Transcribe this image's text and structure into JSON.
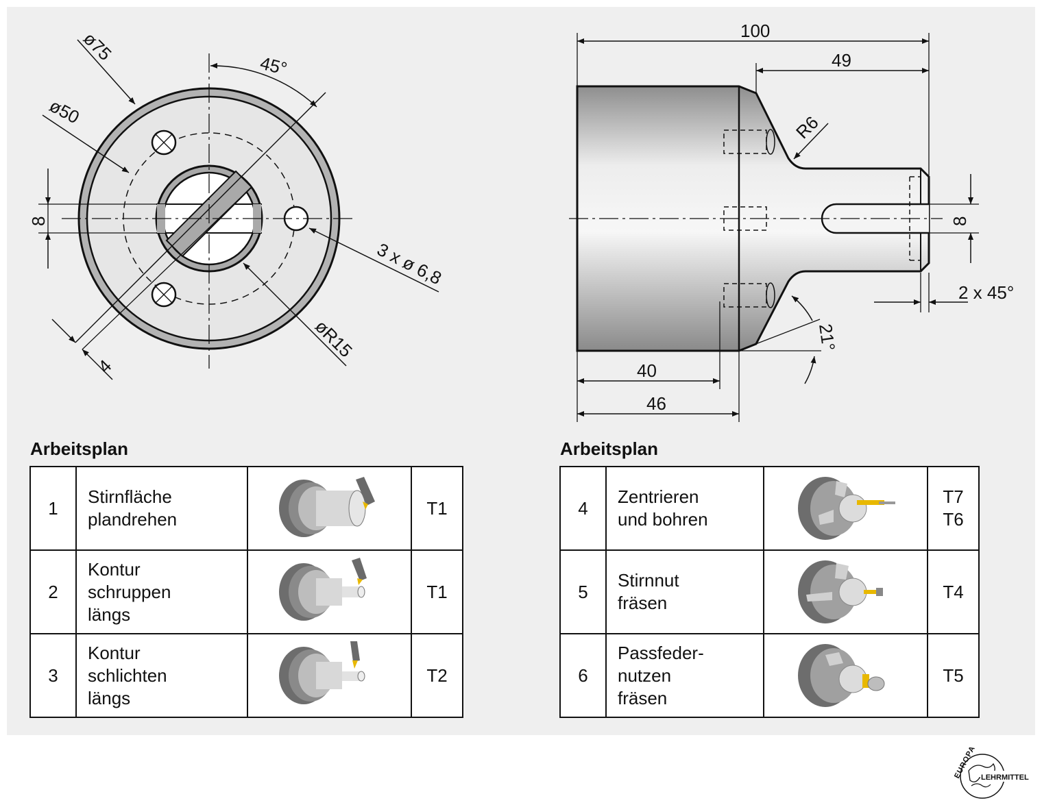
{
  "front_view": {
    "dims": {
      "d75": "ø75",
      "d50": "ø50",
      "angle45": "45°",
      "width8": "8",
      "width4": "4",
      "holes": "3 x ø 6,8",
      "radius15": "øR15"
    }
  },
  "side_view": {
    "dims": {
      "len100": "100",
      "len49": "49",
      "r6": "R6",
      "slot8": "8",
      "chamfer": "2 x 45°",
      "angle21": "21°",
      "len40": "40",
      "len46": "46"
    }
  },
  "plan_left": {
    "title": "Arbeitsplan",
    "rows": [
      {
        "num": "1",
        "step_l1": "Stirnfläche",
        "step_l2": "plandrehen",
        "step_l3": "",
        "tool_l1": "T1",
        "tool_l2": ""
      },
      {
        "num": "2",
        "step_l1": "Kontur",
        "step_l2": "schruppen",
        "step_l3": "längs",
        "tool_l1": "T1",
        "tool_l2": ""
      },
      {
        "num": "3",
        "step_l1": "Kontur",
        "step_l2": "schlichten",
        "step_l3": "längs",
        "tool_l1": "T2",
        "tool_l2": ""
      }
    ]
  },
  "plan_right": {
    "title": "Arbeitsplan",
    "rows": [
      {
        "num": "4",
        "step_l1": "Zentrieren",
        "step_l2": "und bohren",
        "step_l3": "",
        "tool_l1": "T7",
        "tool_l2": "T6"
      },
      {
        "num": "5",
        "step_l1": "Stirnnut",
        "step_l2": "fräsen",
        "step_l3": "",
        "tool_l1": "T4",
        "tool_l2": ""
      },
      {
        "num": "6",
        "step_l1": "Passfeder-",
        "step_l2": "nutzen",
        "step_l3": "fräsen",
        "tool_l1": "T5",
        "tool_l2": ""
      }
    ]
  },
  "logo": {
    "line1": "EUROPA",
    "line2": "LEHRMITTEL"
  },
  "colors": {
    "panel": "#efefef",
    "part_gray": "#c9c9c9",
    "ring_gray": "#b8b8b8",
    "line": "#111111",
    "tool_yellow": "#e8b800"
  }
}
